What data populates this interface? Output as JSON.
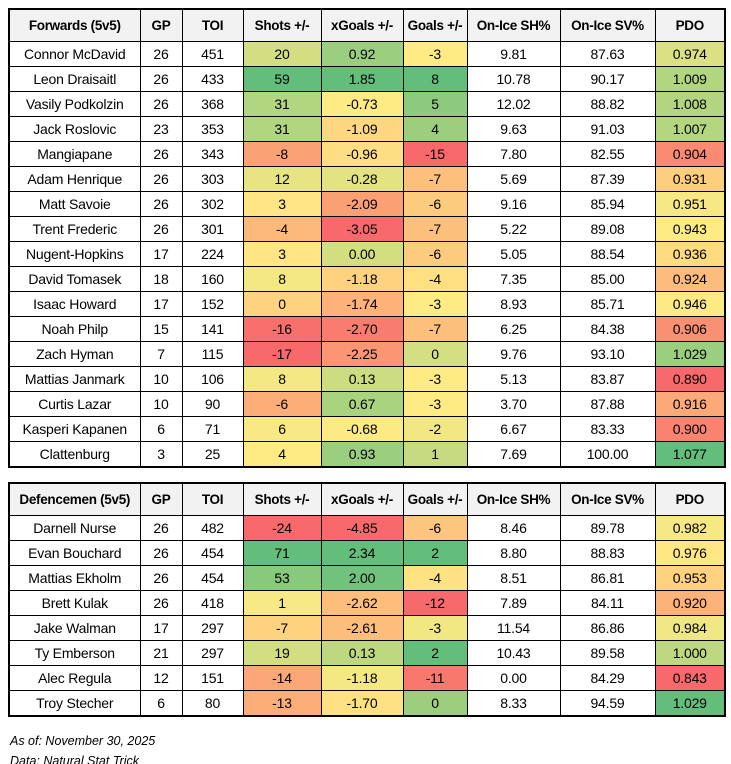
{
  "page": {
    "background": "#FFFFFF",
    "header_bg": "#F2F2F2",
    "border_color": "#000000"
  },
  "color_scale": {
    "min_color": "#F8696B",
    "mid_color": "#FFEB84",
    "max_color": "#63BE7B",
    "midpoint_rule": "50th percentile per column per table"
  },
  "footer": {
    "as_of": "As of: November 30, 2025",
    "source": "Data: Natural Stat Trick"
  },
  "chart_data": [
    {
      "type": "table",
      "title": "Forwards (5v5)",
      "columns": [
        "GP",
        "TOI",
        "Shots +/-",
        "xGoals +/-",
        "Goals +/-",
        "On-Ice SH%",
        "On-Ice SV%",
        "PDO"
      ],
      "column_decimals": [
        0,
        0,
        0,
        2,
        0,
        2,
        2,
        3
      ],
      "heat_columns": [
        2,
        3,
        4,
        7
      ],
      "rows": [
        {
          "name": "Connor McDavid",
          "values": [
            26,
            451,
            20,
            0.92,
            -3,
            9.81,
            87.63,
            0.974
          ]
        },
        {
          "name": "Leon Draisaitl",
          "values": [
            26,
            433,
            59,
            1.85,
            8,
            10.78,
            90.17,
            1.009
          ]
        },
        {
          "name": "Vasily Podkolzin",
          "values": [
            26,
            368,
            31,
            -0.73,
            5,
            12.02,
            88.82,
            1.008
          ]
        },
        {
          "name": "Jack Roslovic",
          "values": [
            23,
            353,
            31,
            -1.09,
            4,
            9.63,
            91.03,
            1.007
          ]
        },
        {
          "name": "Mangiapane",
          "values": [
            26,
            343,
            -8,
            -0.96,
            -15,
            7.8,
            82.55,
            0.904
          ]
        },
        {
          "name": "Adam Henrique",
          "values": [
            26,
            303,
            12,
            -0.28,
            -7,
            5.69,
            87.39,
            0.931
          ]
        },
        {
          "name": "Matt Savoie",
          "values": [
            26,
            302,
            3,
            -2.09,
            -6,
            9.16,
            85.94,
            0.951
          ]
        },
        {
          "name": "Trent Frederic",
          "values": [
            26,
            301,
            -4,
            -3.05,
            -7,
            5.22,
            89.08,
            0.943
          ]
        },
        {
          "name": "Nugent-Hopkins",
          "values": [
            17,
            224,
            3,
            0.0,
            -6,
            5.05,
            88.54,
            0.936
          ]
        },
        {
          "name": "David Tomasek",
          "values": [
            18,
            160,
            8,
            -1.18,
            -4,
            7.35,
            85.0,
            0.924
          ]
        },
        {
          "name": "Isaac Howard",
          "values": [
            17,
            152,
            0,
            -1.74,
            -3,
            8.93,
            85.71,
            0.946
          ]
        },
        {
          "name": "Noah Philp",
          "values": [
            15,
            141,
            -16,
            -2.7,
            -7,
            6.25,
            84.38,
            0.906
          ]
        },
        {
          "name": "Zach Hyman",
          "values": [
            7,
            115,
            -17,
            -2.25,
            0,
            9.76,
            93.1,
            1.029
          ]
        },
        {
          "name": "Mattias Janmark",
          "values": [
            10,
            106,
            8,
            0.13,
            -3,
            5.13,
            83.87,
            0.89
          ]
        },
        {
          "name": "Curtis Lazar",
          "values": [
            10,
            90,
            -6,
            0.67,
            -3,
            3.7,
            87.88,
            0.916
          ]
        },
        {
          "name": "Kasperi Kapanen",
          "values": [
            6,
            71,
            6,
            -0.68,
            -2,
            6.67,
            83.33,
            0.9
          ]
        },
        {
          "name": "Clattenburg",
          "values": [
            3,
            25,
            4,
            0.93,
            1,
            7.69,
            100.0,
            1.077
          ]
        }
      ]
    },
    {
      "type": "table",
      "title": "Defencemen (5v5)",
      "columns": [
        "GP",
        "TOI",
        "Shots +/-",
        "xGoals +/-",
        "Goals +/-",
        "On-Ice SH%",
        "On-Ice SV%",
        "PDO"
      ],
      "column_decimals": [
        0,
        0,
        0,
        2,
        0,
        2,
        2,
        3
      ],
      "heat_columns": [
        2,
        3,
        4,
        7
      ],
      "rows": [
        {
          "name": "Darnell Nurse",
          "values": [
            26,
            482,
            -24,
            -4.85,
            -6,
            8.46,
            89.78,
            0.982
          ]
        },
        {
          "name": "Evan Bouchard",
          "values": [
            26,
            454,
            71,
            2.34,
            2,
            8.8,
            88.83,
            0.976
          ]
        },
        {
          "name": "Mattias Ekholm",
          "values": [
            26,
            454,
            53,
            2.0,
            -4,
            8.51,
            86.81,
            0.953
          ]
        },
        {
          "name": "Brett Kulak",
          "values": [
            26,
            418,
            1,
            -2.62,
            -12,
            7.89,
            84.11,
            0.92
          ]
        },
        {
          "name": "Jake Walman",
          "values": [
            17,
            297,
            -7,
            -2.61,
            -3,
            11.54,
            86.86,
            0.984
          ]
        },
        {
          "name": "Ty Emberson",
          "values": [
            21,
            297,
            19,
            0.13,
            2,
            10.43,
            89.58,
            1.0
          ]
        },
        {
          "name": "Alec Regula",
          "values": [
            12,
            151,
            -14,
            -1.18,
            -11,
            0.0,
            84.29,
            0.843
          ]
        },
        {
          "name": "Troy Stecher",
          "values": [
            6,
            80,
            -13,
            -1.7,
            0,
            8.33,
            94.59,
            1.029
          ]
        }
      ]
    }
  ]
}
